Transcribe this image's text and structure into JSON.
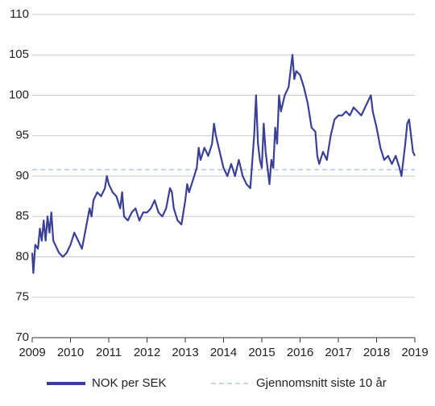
{
  "chart_data": {
    "type": "line",
    "xlim": [
      2009,
      2019
    ],
    "xticks": [
      2009,
      2010,
      2011,
      2012,
      2013,
      2014,
      2015,
      2016,
      2017,
      2018,
      2019
    ],
    "ylim": [
      70,
      110
    ],
    "yticks": [
      70,
      75,
      80,
      85,
      90,
      95,
      100,
      105,
      110
    ],
    "grid": true,
    "legend": "bottom",
    "series": [
      {
        "name": "NOK per SEK",
        "color": "#3b3f95",
        "style": "solid",
        "x": [
          2009.0,
          2009.03,
          2009.08,
          2009.15,
          2009.2,
          2009.25,
          2009.3,
          2009.35,
          2009.4,
          2009.45,
          2009.5,
          2009.55,
          2009.6,
          2009.7,
          2009.8,
          2009.9,
          2010.0,
          2010.1,
          2010.2,
          2010.3,
          2010.4,
          2010.5,
          2010.55,
          2010.6,
          2010.7,
          2010.8,
          2010.9,
          2010.95,
          2011.0,
          2011.1,
          2011.2,
          2011.3,
          2011.35,
          2011.4,
          2011.5,
          2011.6,
          2011.7,
          2011.8,
          2011.9,
          2012.0,
          2012.1,
          2012.2,
          2012.3,
          2012.4,
          2012.5,
          2012.6,
          2012.65,
          2012.7,
          2012.8,
          2012.9,
          2012.95,
          2013.0,
          2013.05,
          2013.1,
          2013.2,
          2013.3,
          2013.35,
          2013.4,
          2013.5,
          2013.6,
          2013.7,
          2013.75,
          2013.8,
          2013.9,
          2014.0,
          2014.1,
          2014.2,
          2014.3,
          2014.4,
          2014.5,
          2014.6,
          2014.7,
          2014.8,
          2014.85,
          2014.9,
          2014.95,
          2015.0,
          2015.05,
          2015.1,
          2015.15,
          2015.2,
          2015.25,
          2015.3,
          2015.35,
          2015.4,
          2015.45,
          2015.5,
          2015.6,
          2015.7,
          2015.75,
          2015.8,
          2015.85,
          2015.9,
          2016.0,
          2016.1,
          2016.2,
          2016.3,
          2016.4,
          2016.45,
          2016.5,
          2016.6,
          2016.7,
          2016.8,
          2016.9,
          2017.0,
          2017.1,
          2017.2,
          2017.3,
          2017.4,
          2017.5,
          2017.6,
          2017.7,
          2017.8,
          2017.85,
          2017.9,
          2018.0,
          2018.1,
          2018.2,
          2018.3,
          2018.4,
          2018.5,
          2018.6,
          2018.65,
          2018.7,
          2018.75,
          2018.8,
          2018.85,
          2018.9,
          2018.95,
          2019.0
        ],
        "values": [
          80.5,
          78,
          81.5,
          81,
          83.5,
          82,
          84.5,
          82,
          85,
          83,
          85.5,
          82,
          81.5,
          80.5,
          80,
          80.5,
          81.5,
          83,
          82,
          81,
          83.5,
          86,
          85,
          87,
          88,
          87.5,
          88.5,
          90,
          89,
          88,
          87.5,
          86,
          88,
          85,
          84.5,
          85.5,
          86,
          84.5,
          85.5,
          85.5,
          86,
          87,
          85.5,
          85,
          86,
          88.5,
          88,
          86,
          84.5,
          84,
          85.5,
          87,
          89,
          88,
          89.5,
          91,
          93.5,
          92,
          93.5,
          92.5,
          94,
          96.5,
          95,
          93,
          91,
          90,
          91.5,
          90,
          92,
          90,
          89,
          88.5,
          95,
          100,
          94,
          92,
          91,
          96.5,
          93,
          91,
          89,
          92,
          91,
          96,
          94,
          100,
          98,
          100,
          101,
          103,
          105,
          102,
          103,
          102.5,
          101,
          99,
          96,
          95.5,
          92.5,
          91.5,
          93,
          92,
          95,
          97,
          97.5,
          97.5,
          98,
          97.5,
          98.5,
          98,
          97.5,
          98.5,
          99.5,
          100,
          98,
          96,
          93.5,
          92,
          92.5,
          91.5,
          92.5,
          91,
          90,
          92,
          94,
          96.5,
          97,
          95,
          93,
          92.5
        ]
      },
      {
        "name": "Gjennomsnitt siste 10 år",
        "color": "#c5d5ea",
        "style": "dashed",
        "x": [
          2009,
          2019
        ],
        "values": [
          90.8,
          90.8
        ]
      }
    ]
  }
}
